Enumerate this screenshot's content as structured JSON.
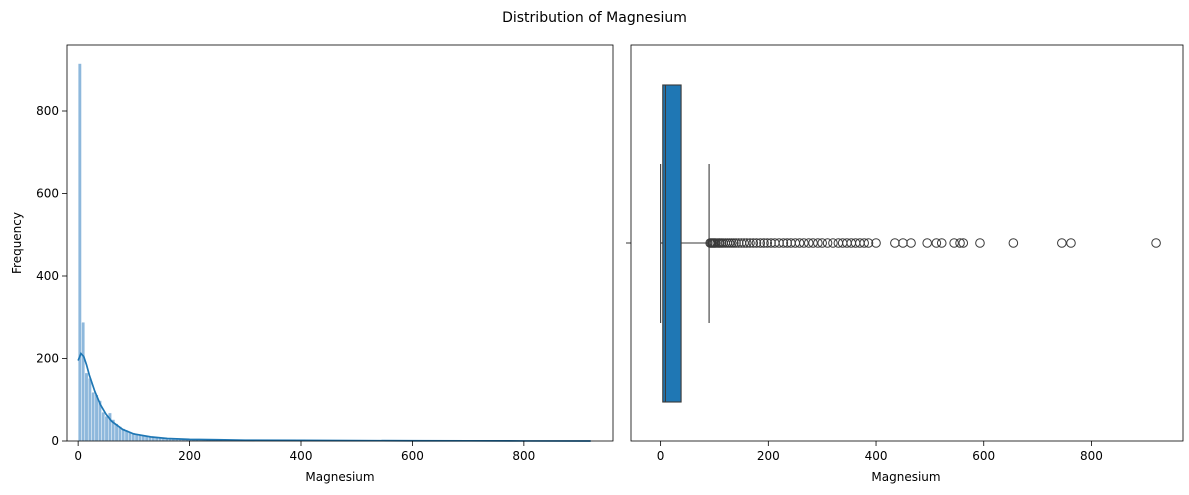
{
  "figure_title": "Distribution of Magnesium",
  "chart_data": [
    {
      "type": "histogram",
      "xlabel": "Magnesium",
      "ylabel": "Frequency",
      "xlim": [
        -20,
        960
      ],
      "ylim": [
        0,
        960
      ],
      "xticks": [
        0,
        200,
        400,
        600,
        800
      ],
      "yticks": [
        0,
        200,
        400,
        600,
        800
      ],
      "bin_width": 6.0,
      "bin_start": 0,
      "counts": [
        915,
        288,
        165,
        152,
        118,
        112,
        98,
        70,
        60,
        68,
        52,
        42,
        35,
        30,
        26,
        22,
        20,
        17,
        14,
        13,
        12,
        10,
        9,
        8,
        7,
        6,
        6,
        5,
        5,
        4,
        4,
        4,
        3,
        3,
        3,
        3,
        2,
        2,
        2,
        2,
        2,
        2,
        2,
        1,
        1,
        1,
        1,
        1,
        1,
        1,
        1,
        1,
        1,
        1,
        1,
        1,
        1,
        1,
        1,
        1,
        1,
        1,
        1,
        1,
        1,
        1,
        1,
        1,
        0,
        1,
        0,
        1,
        0,
        1,
        0,
        0,
        1,
        0,
        0,
        1,
        0,
        0,
        0,
        0,
        0,
        1,
        0,
        0,
        0,
        0,
        0,
        0,
        0,
        0,
        0,
        0,
        0,
        0,
        0,
        0,
        0,
        0,
        0,
        0,
        0,
        0,
        0,
        0,
        0,
        0,
        0,
        0,
        0,
        0,
        0,
        0,
        0,
        0,
        0,
        0,
        0,
        0,
        0,
        0,
        0,
        0,
        0,
        0,
        0,
        0,
        0,
        0,
        0,
        0,
        0,
        0,
        0,
        0,
        0,
        0,
        0,
        0,
        0,
        0,
        0,
        0,
        0,
        0,
        0,
        0,
        0,
        0,
        0
      ],
      "kde": {
        "x": [
          0,
          5,
          10,
          15,
          20,
          30,
          40,
          50,
          60,
          80,
          100,
          130,
          160,
          200,
          250,
          300,
          400,
          500,
          600,
          700,
          800,
          920
        ],
        "y": [
          195,
          212,
          205,
          185,
          160,
          120,
          88,
          65,
          48,
          28,
          17,
          10,
          6,
          4,
          3,
          2,
          1.5,
          1,
          0.6,
          0.4,
          0.2,
          0
        ]
      },
      "bar_color": "#8eb8dc",
      "line_color": "#1f77b4"
    },
    {
      "type": "boxplot",
      "xlabel": "Magnesium",
      "xlim": [
        -55,
        970
      ],
      "xticks": [
        0,
        200,
        400,
        600,
        800
      ],
      "whisker_low": 0,
      "q1": 4,
      "median": 9,
      "q3": 38,
      "whisker_high": 90,
      "outliers": [
        92,
        94,
        96,
        98,
        100,
        102,
        105,
        108,
        110,
        113,
        116,
        120,
        124,
        128,
        132,
        136,
        140,
        145,
        150,
        155,
        160,
        166,
        172,
        178,
        185,
        192,
        198,
        205,
        212,
        220,
        228,
        235,
        242,
        250,
        258,
        266,
        275,
        283,
        292,
        300,
        310,
        320,
        330,
        338,
        346,
        354,
        362,
        370,
        378,
        386,
        400,
        435,
        450,
        465,
        495,
        512,
        522,
        545,
        556,
        562,
        593,
        655,
        745,
        762,
        920
      ],
      "box_color": "#1f77b4"
    }
  ]
}
